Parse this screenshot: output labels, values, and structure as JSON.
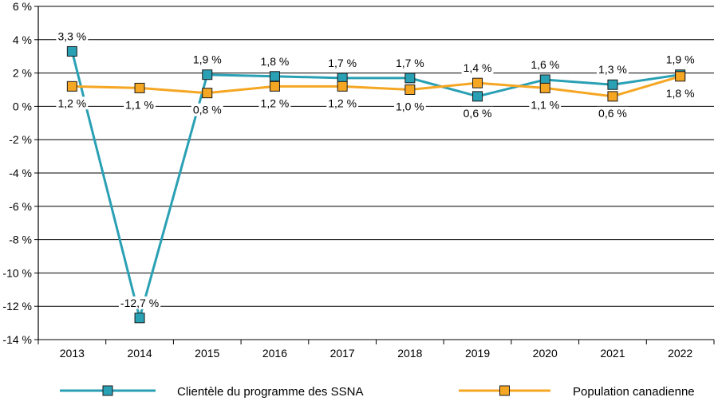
{
  "chart_data": {
    "type": "line",
    "title": "",
    "xlabel": "",
    "ylabel": "",
    "categories": [
      "2013",
      "2014",
      "2015",
      "2016",
      "2017",
      "2018",
      "2019",
      "2020",
      "2021",
      "2022"
    ],
    "ylim": [
      -14,
      6
    ],
    "yticks": [
      6,
      4,
      2,
      0,
      -2,
      -4,
      -6,
      -8,
      -10,
      -12,
      -14
    ],
    "ytick_labels": [
      "6 %",
      "4 %",
      "2 %",
      "0 %",
      "-2 %",
      "-4 %",
      "-6 %",
      "-8 %",
      "-10 %",
      "-12 %",
      "-14 %"
    ],
    "grid": true,
    "legend": "bottom",
    "series": [
      {
        "name": "Clientèle du programme des SSNA",
        "color": "#2aa0b4",
        "values": [
          3.3,
          -12.7,
          1.9,
          1.8,
          1.7,
          1.7,
          0.6,
          1.6,
          1.3,
          1.9
        ],
        "labels": [
          "3,3 %",
          "-12,7 %",
          "1,9 %",
          "1,8 %",
          "1,7 %",
          "1,7 %",
          "0,6 %",
          "1,6 %",
          "1,3 %",
          "1,9 %"
        ],
        "label_positions": [
          "above",
          "above",
          "above",
          "above",
          "above",
          "above",
          "below",
          "above",
          "above",
          "above"
        ]
      },
      {
        "name": "Population canadienne",
        "color": "#f5a623",
        "values": [
          1.2,
          1.1,
          0.8,
          1.2,
          1.2,
          1.0,
          1.4,
          1.1,
          0.6,
          1.8
        ],
        "labels": [
          "1,2 %",
          "1,1 %",
          "0,8 %",
          "1,2 %",
          "1,2 %",
          "1,0 %",
          "1,4 %",
          "1,1 %",
          "0,6 %",
          "1,8 %"
        ],
        "label_positions": [
          "below",
          "below",
          "below",
          "below",
          "below",
          "below",
          "above",
          "below",
          "below",
          "below"
        ]
      }
    ]
  }
}
